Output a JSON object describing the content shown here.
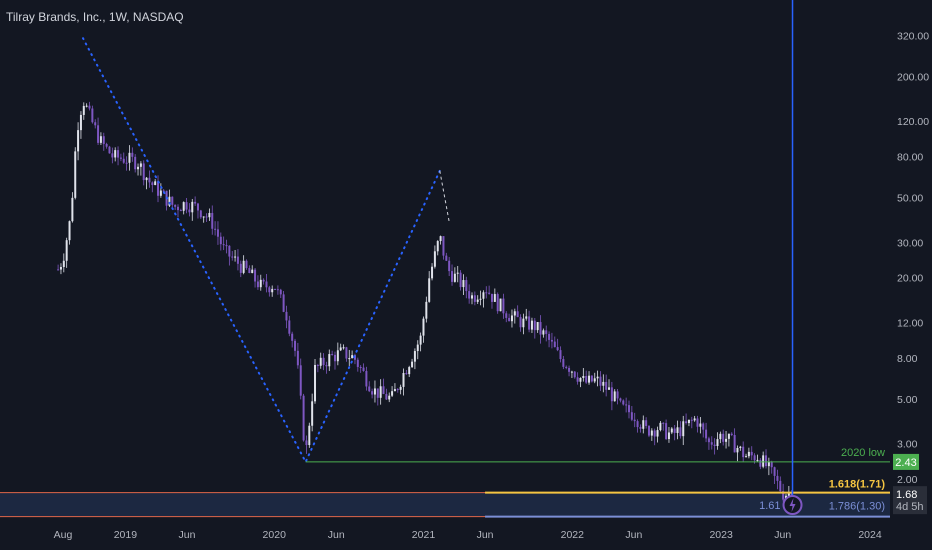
{
  "header": {
    "title": "Tilray Brands, Inc., 1W, NASDAQ"
  },
  "colors": {
    "background": "#131722",
    "candle_up": "#e0e3eb",
    "candle_down": "#7e57c2",
    "pattern_line": "#2962ff",
    "low_line": "#4caf50",
    "fib_1618": "#f5c542",
    "fib_1786": "#7b8fd6",
    "vertical_line": "#2962ff"
  },
  "chart_data": {
    "type": "candlestick",
    "yscale": "log",
    "ylim": [
      1.25,
      480
    ],
    "y_ticks": [
      320,
      200,
      120,
      80,
      50,
      30,
      20,
      12,
      8,
      5,
      3,
      2
    ],
    "y_tick_labels": [
      "320.00",
      "200.00",
      "120.00",
      "80.00",
      "50.00",
      "30.00",
      "20.00",
      "12.00",
      "8.00",
      "5.00",
      "3.00",
      "2.00"
    ],
    "x_ticks": [
      {
        "label": "Aug",
        "date": "2018-08-01"
      },
      {
        "label": "2019",
        "date": "2019-01-01"
      },
      {
        "label": "Jun",
        "date": "2019-06-01"
      },
      {
        "label": "2020",
        "date": "2020-01-01"
      },
      {
        "label": "Jun",
        "date": "2020-06-01"
      },
      {
        "label": "2021",
        "date": "2021-01-01"
      },
      {
        "label": "Jun",
        "date": "2021-06-01"
      },
      {
        "label": "2022",
        "date": "2022-01-01"
      },
      {
        "label": "Jun",
        "date": "2022-06-01"
      },
      {
        "label": "2023",
        "date": "2023-01-01"
      },
      {
        "label": "Jun",
        "date": "2023-06-01"
      },
      {
        "label": "2024",
        "date": "2024-01-01"
      }
    ],
    "price_path": [
      [
        "2018-07-20",
        22
      ],
      [
        "2018-08-01",
        25
      ],
      [
        "2018-08-20",
        40
      ],
      [
        "2018-09-04",
        110
      ],
      [
        "2018-09-19",
        155
      ],
      [
        "2018-10-10",
        120
      ],
      [
        "2018-11-01",
        95
      ],
      [
        "2018-12-01",
        80
      ],
      [
        "2019-01-01",
        78
      ],
      [
        "2019-02-01",
        75
      ],
      [
        "2019-03-01",
        60
      ],
      [
        "2019-04-01",
        52
      ],
      [
        "2019-05-01",
        45
      ],
      [
        "2019-06-01",
        47
      ],
      [
        "2019-07-01",
        44
      ],
      [
        "2019-08-01",
        38
      ],
      [
        "2019-09-01",
        27
      ],
      [
        "2019-10-01",
        24
      ],
      [
        "2019-11-01",
        21
      ],
      [
        "2019-12-01",
        18
      ],
      [
        "2020-01-01",
        18.5
      ],
      [
        "2020-02-01",
        13
      ],
      [
        "2020-02-25",
        8
      ],
      [
        "2020-03-18",
        2.6
      ],
      [
        "2020-04-10",
        7
      ],
      [
        "2020-05-15",
        8
      ],
      [
        "2020-06-15",
        8.5
      ],
      [
        "2020-07-15",
        8
      ],
      [
        "2020-09-01",
        5.5
      ],
      [
        "2020-10-15",
        5
      ],
      [
        "2020-12-01",
        8
      ],
      [
        "2020-12-25",
        10
      ],
      [
        "2021-01-15",
        20
      ],
      [
        "2021-02-10",
        32
      ],
      [
        "2021-03-01",
        22
      ],
      [
        "2021-04-01",
        19
      ],
      [
        "2021-05-01",
        16
      ],
      [
        "2021-06-01",
        18
      ],
      [
        "2021-07-01",
        15
      ],
      [
        "2021-08-01",
        13
      ],
      [
        "2021-09-01",
        12
      ],
      [
        "2021-10-01",
        11.5
      ],
      [
        "2021-11-01",
        10
      ],
      [
        "2021-12-01",
        8
      ],
      [
        "2022-01-01",
        7
      ],
      [
        "2022-02-01",
        6
      ],
      [
        "2022-03-01",
        6.2
      ],
      [
        "2022-04-01",
        5.5
      ],
      [
        "2022-05-01",
        4.5
      ],
      [
        "2022-06-01",
        4.2
      ],
      [
        "2022-07-01",
        3.5
      ],
      [
        "2022-08-01",
        3.6
      ],
      [
        "2022-09-01",
        3.3
      ],
      [
        "2022-10-01",
        3.6
      ],
      [
        "2022-11-01",
        4
      ],
      [
        "2022-12-01",
        3.0
      ],
      [
        "2023-01-01",
        3.3
      ],
      [
        "2023-02-01",
        3.0
      ],
      [
        "2023-03-01",
        2.6
      ],
      [
        "2023-04-01",
        2.6
      ],
      [
        "2023-05-01",
        2.2
      ],
      [
        "2023-06-01",
        1.7
      ],
      [
        "2023-06-25",
        1.68
      ]
    ],
    "pattern_points": [
      [
        "2018-09-19",
        310
      ],
      [
        "2020-03-18",
        2.43
      ],
      [
        "2021-02-10",
        68
      ]
    ],
    "dashed_segment": [
      [
        "2021-02-10",
        68
      ],
      [
        "2021-03-05",
        38
      ]
    ],
    "low_level": {
      "value": 2.43,
      "start": "2020-03-18",
      "label": "2020 low",
      "tag": "2.43"
    },
    "fib_levels": [
      {
        "label": "1.618(1.71)",
        "value": 1.71,
        "start": "2021-06-01"
      },
      {
        "label": "1.786(1.30)",
        "value": 1.3,
        "start": "2021-06-01"
      }
    ],
    "current_price": {
      "value": "1.68",
      "countdown": "4d 5h"
    },
    "vertical_line_date": "2023-06-25",
    "cutoff_label": "1.61"
  }
}
